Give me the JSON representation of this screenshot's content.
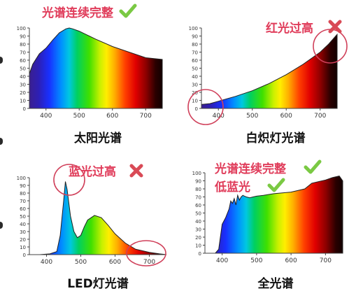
{
  "colors": {
    "annotation": "#e03c5a",
    "check": "#7ac943",
    "cross": "#d94a56",
    "circle": "#d0405a",
    "axis": "#444444"
  },
  "chart_data": [
    {
      "type": "area",
      "caption": "太阳光谱",
      "x_ticks": [
        400,
        500,
        600,
        700
      ],
      "y_ticks": [
        0,
        10,
        20,
        30,
        40,
        50,
        60,
        70,
        80,
        90,
        100
      ],
      "xlim": [
        350,
        750
      ],
      "ylim": [
        0,
        100
      ],
      "x": [
        350,
        360,
        380,
        400,
        420,
        440,
        460,
        470,
        480,
        500,
        520,
        550,
        600,
        650,
        700,
        750
      ],
      "y": [
        43,
        55,
        68,
        75,
        85,
        94,
        99,
        100,
        99,
        96,
        92,
        86,
        77,
        70,
        63,
        61
      ],
      "annotations": [
        {
          "text": "光谱连续完整",
          "symbol": "check"
        }
      ]
    },
    {
      "type": "area",
      "caption": "白炽灯光谱",
      "x_ticks": [
        400,
        500,
        600,
        700
      ],
      "y_ticks": [
        0,
        10,
        20,
        30,
        40,
        50,
        60,
        70,
        80,
        90,
        100
      ],
      "xlim": [
        350,
        750
      ],
      "ylim": [
        0,
        100
      ],
      "x": [
        350,
        375,
        400,
        425,
        450,
        500,
        550,
        600,
        650,
        700,
        725,
        750
      ],
      "y": [
        5,
        6,
        9,
        12,
        15,
        22,
        31,
        42,
        55,
        70,
        80,
        92
      ],
      "annotations": [
        {
          "text": "红光过高",
          "symbol": "cross"
        }
      ],
      "highlight_circles": 2
    },
    {
      "type": "area",
      "caption": "LED灯光谱",
      "x_ticks": [
        400,
        500,
        600,
        700
      ],
      "y_ticks": [
        0,
        10,
        20,
        30,
        40,
        50,
        60,
        70,
        80,
        90,
        100
      ],
      "xlim": [
        350,
        750
      ],
      "ylim": [
        0,
        100
      ],
      "x": [
        380,
        410,
        430,
        440,
        450,
        455,
        460,
        470,
        480,
        490,
        500,
        510,
        520,
        540,
        560,
        580,
        600,
        630,
        660,
        700,
        730,
        750
      ],
      "y": [
        0,
        1,
        4,
        25,
        70,
        95,
        85,
        50,
        30,
        22,
        25,
        36,
        45,
        51,
        48,
        38,
        27,
        15,
        7,
        3,
        1,
        0
      ],
      "annotations": [
        {
          "text": "蓝光过高",
          "symbol": "cross"
        }
      ],
      "highlight_circles": 2
    },
    {
      "type": "area",
      "caption": "全光谱",
      "x_ticks": [
        400,
        500,
        600,
        700
      ],
      "y_ticks": [
        0,
        10,
        20,
        30,
        40,
        50,
        60,
        70,
        80,
        90,
        100
      ],
      "xlim": [
        350,
        750
      ],
      "ylim": [
        0,
        100
      ],
      "x": [
        380,
        390,
        400,
        410,
        420,
        425,
        430,
        435,
        440,
        445,
        450,
        455,
        460,
        465,
        470,
        480,
        490,
        500,
        520,
        550,
        600,
        640,
        660,
        680,
        700,
        720,
        740,
        750
      ],
      "y": [
        0,
        5,
        36,
        44,
        55,
        65,
        62,
        68,
        60,
        72,
        66,
        70,
        72,
        71,
        70,
        69,
        70,
        71,
        72,
        74,
        76,
        80,
        87,
        89,
        91,
        94,
        96,
        90
      ],
      "annotations": [
        {
          "text": "光谱连续完整",
          "symbol": "check"
        },
        {
          "text": "低蓝光",
          "symbol": "check"
        }
      ]
    }
  ]
}
